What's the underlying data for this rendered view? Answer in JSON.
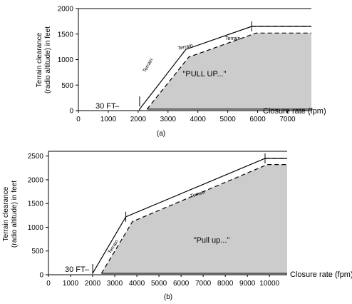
{
  "chart_data": [
    {
      "type": "area",
      "xlabel": "Closure rate (fpm)",
      "ylabel": [
        "Terrain clearance",
        "(radio altitude) in feet"
      ],
      "xlim": [
        0,
        7800
      ],
      "ylim": [
        0,
        2000
      ],
      "xticks": [
        0,
        1000,
        2000,
        3000,
        4000,
        5000,
        6000,
        7000
      ],
      "yticks": [
        0,
        500,
        1000,
        1500,
        2000
      ],
      "caption": "(a)",
      "region_label": "\"PULL UP...\"",
      "floor_label": "30 FT",
      "terrain_labels": [
        "Terrain",
        "Terrain",
        "Terrain"
      ],
      "boundary_solid": [
        [
          2050,
          0
        ],
        [
          2050,
          30
        ],
        [
          3600,
          1200
        ],
        [
          5800,
          1650
        ],
        [
          7800,
          1650
        ]
      ],
      "boundary_dashed": [
        [
          2300,
          30
        ],
        [
          3700,
          1050
        ],
        [
          5950,
          1520
        ],
        [
          7800,
          1520
        ]
      ],
      "dashed_extension": [
        [
          5800,
          1650
        ],
        [
          7800,
          1650
        ]
      ],
      "tick_marks": [
        [
          2050,
          180
        ],
        [
          5800,
          1650
        ]
      ],
      "fill_color": "#cccccc"
    },
    {
      "type": "area",
      "xlabel": "Closure rate (fpm)",
      "ylabel": [
        "Terrain clearance",
        "(radio altitude) in feet"
      ],
      "xlim": [
        0,
        10800
      ],
      "ylim": [
        0,
        2600
      ],
      "xticks": [
        0,
        1000,
        2000,
        3000,
        4000,
        5000,
        6000,
        7000,
        8000,
        9000,
        10000
      ],
      "yticks": [
        0,
        500,
        1000,
        1500,
        2000,
        2500
      ],
      "caption": "(b)",
      "region_label": "\"Pull up...\"",
      "floor_label": "30 FT",
      "terrain_labels": [
        "Terrain",
        "Terrain"
      ],
      "boundary_solid": [
        [
          2000,
          30
        ],
        [
          3500,
          1220
        ],
        [
          9800,
          2450
        ],
        [
          10800,
          2450
        ]
      ],
      "boundary_dashed": [
        [
          2400,
          30
        ],
        [
          3800,
          1120
        ],
        [
          9900,
          2320
        ],
        [
          10800,
          2320
        ]
      ],
      "dashed_extension": [
        [
          9800,
          2450
        ],
        [
          10800,
          2450
        ]
      ],
      "tick_marks": [
        [
          2000,
          120
        ],
        [
          3500,
          1220
        ],
        [
          9800,
          2450
        ]
      ],
      "fill_color": "#cccccc"
    }
  ]
}
